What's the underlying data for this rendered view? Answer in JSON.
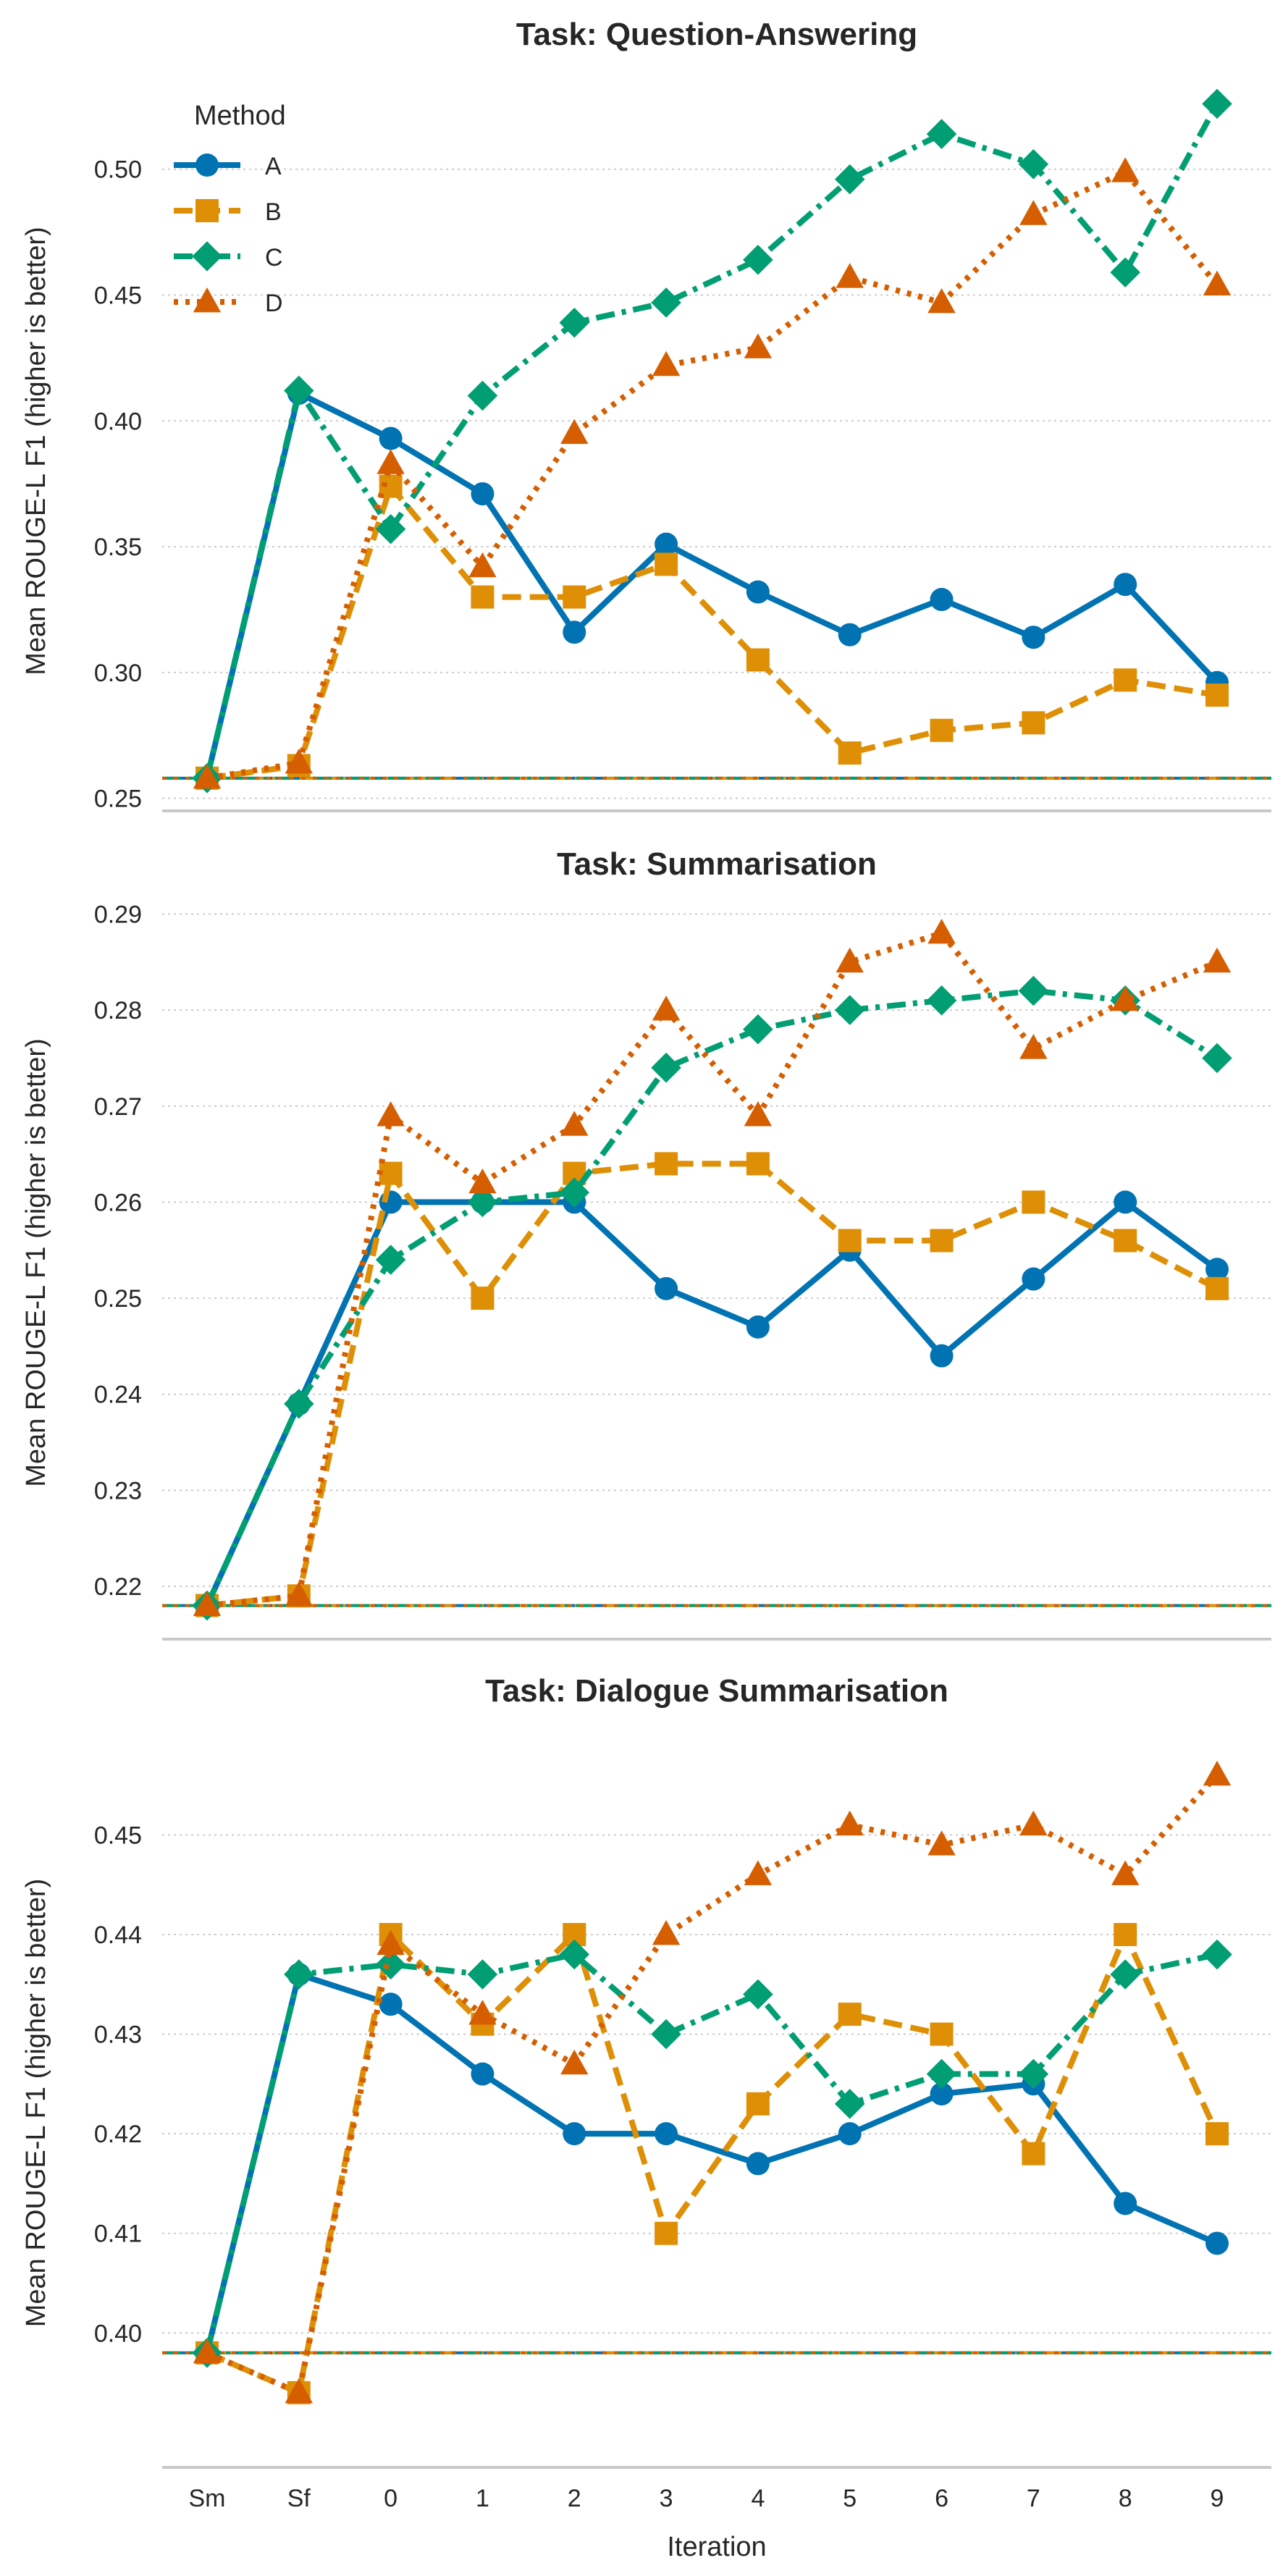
{
  "chart_data": [
    {
      "type": "line",
      "title": "Task: Question-Answering",
      "xlabel": "",
      "ylabel": "Mean ROUGE-L F1 (higher is better)",
      "categories": [
        "Sm",
        "Sf",
        "0",
        "1",
        "2",
        "3",
        "4",
        "5",
        "6",
        "7",
        "8",
        "9"
      ],
      "yticks": [
        "0.25",
        "0.30",
        "0.35",
        "0.40",
        "0.45",
        "0.50"
      ],
      "ylim": [
        0.245,
        0.531
      ],
      "baseline": 0.258,
      "grid": true,
      "legend": {
        "title": "Method",
        "placement": "top-left"
      },
      "series": [
        {
          "name": "A",
          "values": [
            0.258,
            0.411,
            0.393,
            0.371,
            0.316,
            0.351,
            0.332,
            0.315,
            0.329,
            0.314,
            0.335,
            0.296
          ]
        },
        {
          "name": "B",
          "values": [
            0.258,
            0.263,
            0.374,
            0.33,
            0.33,
            0.343,
            0.305,
            0.268,
            0.277,
            0.28,
            0.297,
            0.291
          ]
        },
        {
          "name": "C",
          "values": [
            0.258,
            0.412,
            0.357,
            0.41,
            0.439,
            0.447,
            0.464,
            0.496,
            0.514,
            0.502,
            0.459,
            0.526
          ]
        },
        {
          "name": "D",
          "values": [
            0.258,
            0.264,
            0.383,
            0.342,
            0.395,
            0.422,
            0.429,
            0.457,
            0.447,
            0.482,
            0.499,
            0.454
          ]
        }
      ]
    },
    {
      "type": "line",
      "title": "Task: Summarisation",
      "xlabel": "",
      "ylabel": "Mean ROUGE-L F1 (higher is better)",
      "categories": [
        "Sm",
        "Sf",
        "0",
        "1",
        "2",
        "3",
        "4",
        "5",
        "6",
        "7",
        "8",
        "9"
      ],
      "yticks": [
        "0.22",
        "0.23",
        "0.24",
        "0.25",
        "0.26",
        "0.27",
        "0.28",
        "0.29"
      ],
      "ylim": [
        0.2145,
        0.2929
      ],
      "baseline": 0.218,
      "grid": true,
      "series": [
        {
          "name": "A",
          "values": [
            0.218,
            0.239,
            0.26,
            0.26,
            0.26,
            0.251,
            0.247,
            0.255,
            0.244,
            0.252,
            0.26,
            0.253
          ]
        },
        {
          "name": "B",
          "values": [
            0.218,
            0.219,
            0.263,
            0.25,
            0.263,
            0.264,
            0.264,
            0.256,
            0.256,
            0.26,
            0.256,
            0.251
          ]
        },
        {
          "name": "C",
          "values": [
            0.218,
            0.239,
            0.254,
            0.26,
            0.261,
            0.274,
            0.278,
            0.28,
            0.281,
            0.282,
            0.281,
            0.275
          ]
        },
        {
          "name": "D",
          "values": [
            0.218,
            0.219,
            0.269,
            0.262,
            0.268,
            0.28,
            0.269,
            0.285,
            0.288,
            0.276,
            0.281,
            0.285
          ]
        }
      ]
    },
    {
      "type": "line",
      "title": "Task: Dialogue Summarisation",
      "xlabel": "Iteration",
      "ylabel": "Mean ROUGE-L F1 (higher is better)",
      "categories": [
        "Sm",
        "Sf",
        "0",
        "1",
        "2",
        "3",
        "4",
        "5",
        "6",
        "7",
        "8",
        "9"
      ],
      "yticks": [
        "0.40",
        "0.41",
        "0.42",
        "0.43",
        "0.44",
        "0.45"
      ],
      "ylim": [
        0.3865,
        0.4597
      ],
      "baseline": 0.398,
      "grid": true,
      "series": [
        {
          "name": "A",
          "values": [
            0.398,
            0.436,
            0.433,
            0.426,
            0.42,
            0.42,
            0.417,
            0.42,
            0.424,
            0.425,
            0.413,
            0.409
          ]
        },
        {
          "name": "B",
          "values": [
            0.398,
            0.394,
            0.44,
            0.431,
            0.44,
            0.41,
            0.423,
            0.432,
            0.43,
            0.418,
            0.44,
            0.42
          ]
        },
        {
          "name": "C",
          "values": [
            0.398,
            0.436,
            0.437,
            0.436,
            0.438,
            0.43,
            0.434,
            0.423,
            0.426,
            0.426,
            0.436,
            0.438
          ]
        },
        {
          "name": "D",
          "values": [
            0.398,
            0.394,
            0.439,
            0.432,
            0.427,
            0.44,
            0.446,
            0.451,
            0.449,
            0.451,
            0.446,
            0.456
          ]
        }
      ]
    }
  ],
  "series_style": {
    "A": {
      "color": "#0173B2",
      "marker": "circle",
      "line": "solid"
    },
    "B": {
      "color": "#DE8F05",
      "marker": "square",
      "line": "dashed"
    },
    "C": {
      "color": "#029E73",
      "marker": "diamond",
      "line": "dashdot"
    },
    "D": {
      "color": "#D55E00",
      "marker": "triangle",
      "line": "dotted"
    }
  }
}
